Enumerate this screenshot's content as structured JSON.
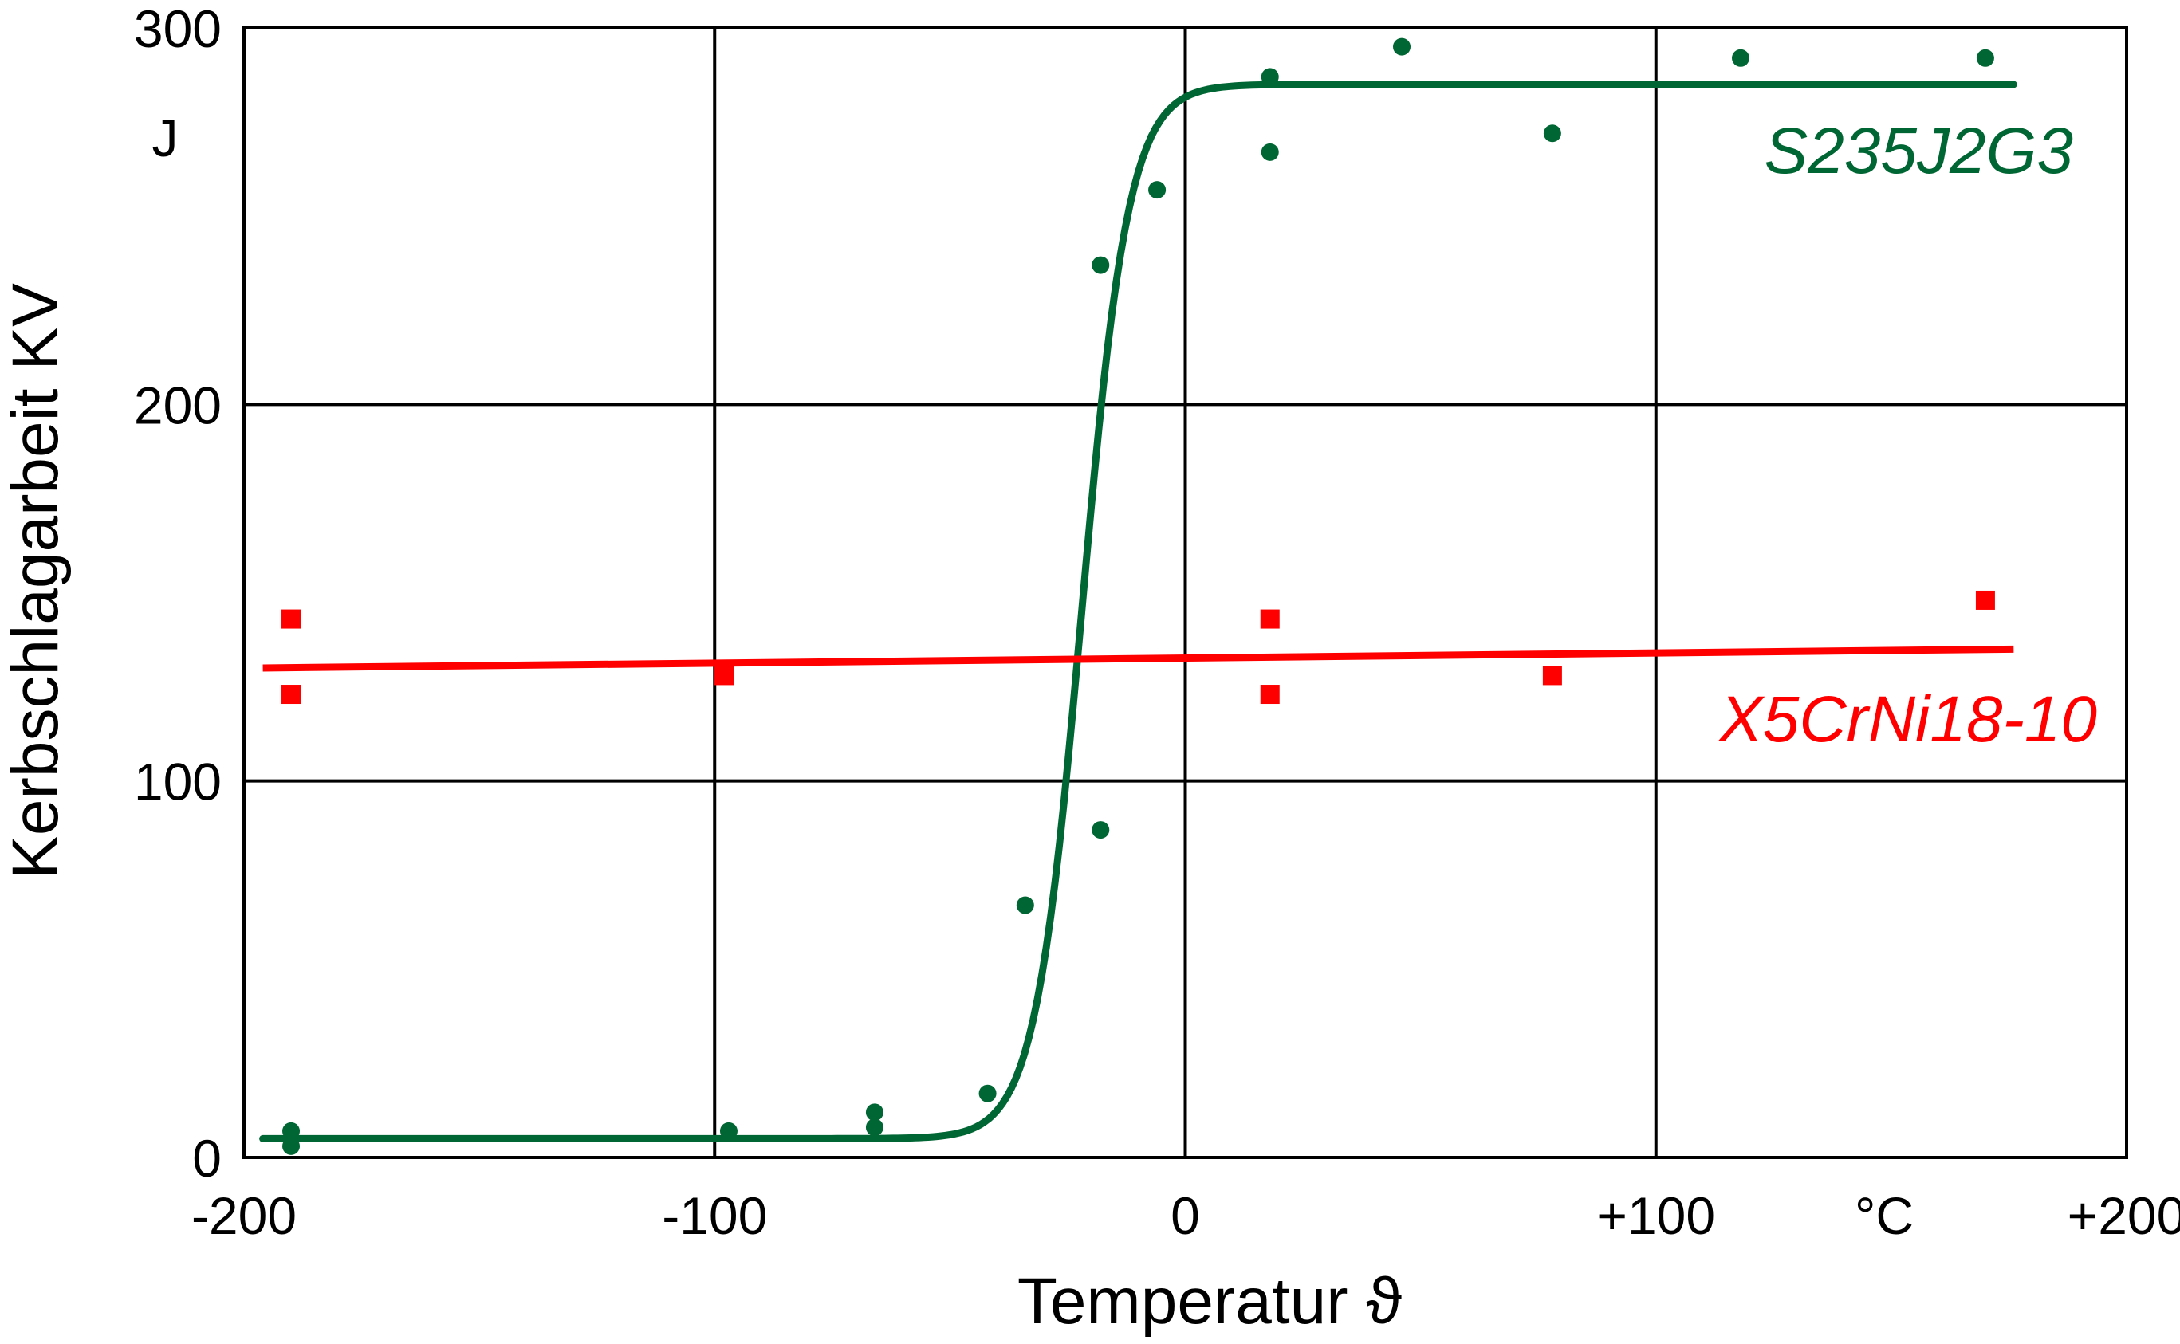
{
  "chart_data": {
    "type": "scatter",
    "xlabel": "Temperatur ϑ",
    "ylabel": "Kerbschlagarbeit KV",
    "y_unit": "J",
    "x_unit": "°C",
    "xlim": [
      -200,
      200
    ],
    "ylim": [
      0,
      300
    ],
    "x_tick_labels": [
      "-200",
      "-100",
      "0",
      "+100",
      "+200"
    ],
    "y_tick_labels": [
      "0",
      "100",
      "200",
      "300"
    ],
    "grid": true,
    "series": [
      {
        "name": "S235J2G3",
        "color": "#006633",
        "marker": "circle",
        "points": [
          [
            -190,
            7
          ],
          [
            -190,
            3
          ],
          [
            -97,
            7
          ],
          [
            -66,
            12
          ],
          [
            -66,
            8
          ],
          [
            -42,
            17
          ],
          [
            -34,
            67
          ],
          [
            -18,
            87
          ],
          [
            -18,
            237
          ],
          [
            -6,
            257
          ],
          [
            18,
            287
          ],
          [
            18,
            267
          ],
          [
            46,
            295
          ],
          [
            78,
            272
          ],
          [
            118,
            292
          ],
          [
            170,
            292
          ]
        ],
        "fit_curve": {
          "shape": "sigmoid",
          "lower": 5,
          "upper": 285,
          "midpoint": -22,
          "width": 5,
          "x_range": [
            -196,
            176
          ]
        }
      },
      {
        "name": "X5CrNi18-10",
        "color": "#ff0000",
        "marker": "square",
        "points": [
          [
            -190,
            143
          ],
          [
            -190,
            123
          ],
          [
            -98,
            128
          ],
          [
            18,
            143
          ],
          [
            18,
            123
          ],
          [
            78,
            128
          ],
          [
            170,
            148
          ]
        ],
        "fit_line": {
          "x": [
            -196,
            176
          ],
          "y": [
            130,
            135
          ]
        }
      }
    ]
  }
}
